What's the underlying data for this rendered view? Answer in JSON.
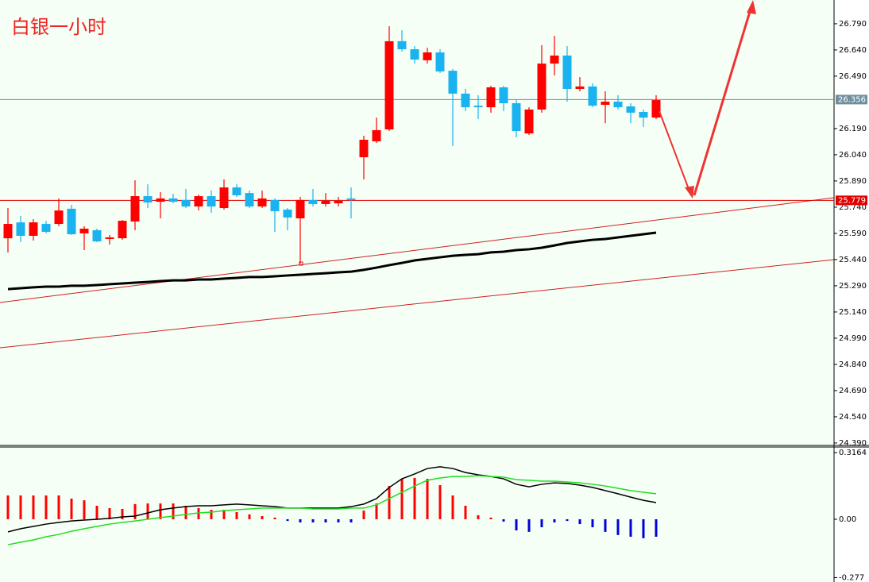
{
  "chart_data": [
    {
      "type": "candlestick",
      "title": "白银一小时",
      "up_color": "#ff0000",
      "down_color": "#1ab2ef",
      "open": [
        25.562,
        25.653,
        25.576,
        25.644,
        25.644,
        25.731,
        25.59,
        25.608,
        25.558,
        25.562,
        25.658,
        25.803,
        25.771,
        25.79,
        25.781,
        25.744,
        25.803,
        25.735,
        25.853,
        25.821,
        25.744,
        25.781,
        25.726,
        25.676,
        25.781,
        25.758,
        25.762,
        25.79,
        26.026,
        26.117,
        26.185,
        26.69,
        26.644,
        26.581,
        26.626,
        26.521,
        26.39,
        26.321,
        26.312,
        26.426,
        26.335,
        26.162,
        26.299,
        26.562,
        26.608,
        26.417,
        26.431,
        26.326,
        26.344,
        26.317,
        26.285,
        26.253
      ],
      "high": [
        25.735,
        25.69,
        25.671,
        25.662,
        25.79,
        25.753,
        25.631,
        25.617,
        25.581,
        25.667,
        25.894,
        25.871,
        25.826,
        25.817,
        25.844,
        25.812,
        25.835,
        25.899,
        25.871,
        25.835,
        25.835,
        25.79,
        25.735,
        25.799,
        25.844,
        25.821,
        25.799,
        25.853,
        26.149,
        26.253,
        26.776,
        26.753,
        26.662,
        26.653,
        26.644,
        26.531,
        26.417,
        26.381,
        26.435,
        26.435,
        26.358,
        26.312,
        26.667,
        26.721,
        26.662,
        26.485,
        26.449,
        26.403,
        26.381,
        26.335,
        26.299,
        26.381
      ],
      "low": [
        25.481,
        25.54,
        25.549,
        25.59,
        25.631,
        25.581,
        25.494,
        25.54,
        25.526,
        25.553,
        25.608,
        25.735,
        25.676,
        25.762,
        25.735,
        25.721,
        25.708,
        25.726,
        25.799,
        25.735,
        25.735,
        25.599,
        25.608,
        25.417,
        25.744,
        25.744,
        25.744,
        25.676,
        25.899,
        26.108,
        26.176,
        26.631,
        26.562,
        26.562,
        26.508,
        26.09,
        26.29,
        26.244,
        26.281,
        26.29,
        26.14,
        26.153,
        26.281,
        26.494,
        26.344,
        26.403,
        26.312,
        26.221,
        26.299,
        26.221,
        26.199,
        26.244
      ],
      "close": [
        25.644,
        25.576,
        25.653,
        25.599,
        25.721,
        25.585,
        25.617,
        25.544,
        25.567,
        25.662,
        25.803,
        25.767,
        25.79,
        25.771,
        25.744,
        25.803,
        25.744,
        25.853,
        25.808,
        25.744,
        25.79,
        25.717,
        25.681,
        25.781,
        25.758,
        25.776,
        25.776,
        25.781,
        26.126,
        26.181,
        26.69,
        26.644,
        26.585,
        26.626,
        26.517,
        26.39,
        26.312,
        26.312,
        26.426,
        26.335,
        26.176,
        26.299,
        26.562,
        26.608,
        26.417,
        26.431,
        26.321,
        26.344,
        26.312,
        26.281,
        26.253,
        26.353
      ],
      "ma": {
        "color": "#000000",
        "values": [
          25.271,
          25.276,
          25.281,
          25.285,
          25.285,
          25.29,
          25.29,
          25.294,
          25.299,
          25.303,
          25.308,
          25.312,
          25.317,
          25.321,
          25.321,
          25.326,
          25.326,
          25.331,
          25.335,
          25.34,
          25.34,
          25.344,
          25.349,
          25.353,
          25.358,
          25.362,
          25.367,
          25.371,
          25.381,
          25.394,
          25.408,
          25.421,
          25.435,
          25.444,
          25.453,
          25.462,
          25.467,
          25.471,
          25.481,
          25.485,
          25.494,
          25.499,
          25.508,
          25.521,
          25.535,
          25.544,
          25.553,
          25.558,
          25.567,
          25.576,
          25.585,
          25.594
        ]
      },
      "ylim": [
        24.376,
        26.926
      ],
      "yticks": [
        {
          "value": 26.79,
          "label": "26.790"
        },
        {
          "value": 26.64,
          "label": "26.640"
        },
        {
          "value": 26.49,
          "label": "26.490"
        },
        {
          "value": 26.19,
          "label": "26.190"
        },
        {
          "value": 26.04,
          "label": "26.040"
        },
        {
          "value": 25.89,
          "label": "25.890"
        },
        {
          "value": 25.74,
          "label": "25.740"
        },
        {
          "value": 25.59,
          "label": "25.590"
        },
        {
          "value": 25.44,
          "label": "25.440"
        },
        {
          "value": 25.29,
          "label": "25.290"
        },
        {
          "value": 25.14,
          "label": "25.140"
        },
        {
          "value": 24.99,
          "label": "24.990"
        },
        {
          "value": 24.84,
          "label": "24.840"
        },
        {
          "value": 24.69,
          "label": "24.690"
        },
        {
          "value": 24.54,
          "label": "24.540"
        },
        {
          "value": 24.39,
          "label": "24.390"
        }
      ],
      "price_lines": [
        {
          "value": 26.356,
          "color": "#6f8fa0"
        },
        {
          "value": 25.779,
          "color": "#e00000"
        }
      ]
    },
    {
      "type": "macd",
      "pos_color": "#ff0000",
      "neg_color": "#0000dd",
      "values": [
        0.113,
        0.113,
        0.113,
        0.113,
        0.113,
        0.098,
        0.09,
        0.064,
        0.053,
        0.049,
        0.072,
        0.075,
        0.075,
        0.075,
        0.064,
        0.053,
        0.045,
        0.045,
        0.034,
        0.023,
        0.015,
        0.008,
        -0.008,
        -0.015,
        -0.015,
        -0.015,
        -0.015,
        -0.015,
        0.041,
        0.075,
        0.158,
        0.192,
        0.196,
        0.192,
        0.162,
        0.113,
        0.064,
        0.019,
        0.008,
        -0.011,
        -0.053,
        -0.06,
        -0.038,
        -0.015,
        -0.008,
        -0.023,
        -0.038,
        -0.06,
        -0.075,
        -0.083,
        -0.09,
        -0.083
      ],
      "series": [
        {
          "color": "#000000",
          "values": [
            -0.06,
            -0.045,
            -0.034,
            -0.023,
            -0.015,
            -0.008,
            -0.004,
            0,
            0.004,
            0.011,
            0.015,
            0.03,
            0.045,
            0.053,
            0.06,
            0.064,
            0.064,
            0.068,
            0.072,
            0.068,
            0.064,
            0.06,
            0.053,
            0.053,
            0.053,
            0.053,
            0.053,
            0.06,
            0.072,
            0.098,
            0.151,
            0.192,
            0.215,
            0.241,
            0.249,
            0.241,
            0.222,
            0.211,
            0.203,
            0.192,
            0.166,
            0.154,
            0.166,
            0.173,
            0.17,
            0.162,
            0.151,
            0.136,
            0.121,
            0.105,
            0.09,
            0.079
          ]
        },
        {
          "color": "#22dd22",
          "values": [
            -0.121,
            -0.109,
            -0.098,
            -0.083,
            -0.072,
            -0.057,
            -0.045,
            -0.034,
            -0.023,
            -0.015,
            -0.008,
            0,
            0.008,
            0.015,
            0.023,
            0.03,
            0.034,
            0.041,
            0.045,
            0.049,
            0.053,
            0.053,
            0.053,
            0.053,
            0.049,
            0.049,
            0.049,
            0.053,
            0.053,
            0.068,
            0.098,
            0.128,
            0.158,
            0.185,
            0.196,
            0.203,
            0.203,
            0.207,
            0.203,
            0.2,
            0.188,
            0.185,
            0.181,
            0.181,
            0.177,
            0.173,
            0.166,
            0.158,
            0.147,
            0.136,
            0.128,
            0.121
          ]
        }
      ],
      "ylim": [
        -0.298,
        0.343
      ],
      "yticks": [
        0.3164,
        {
          "value": 0,
          "label": "0.00"
        },
        -0.277
      ]
    }
  ]
}
